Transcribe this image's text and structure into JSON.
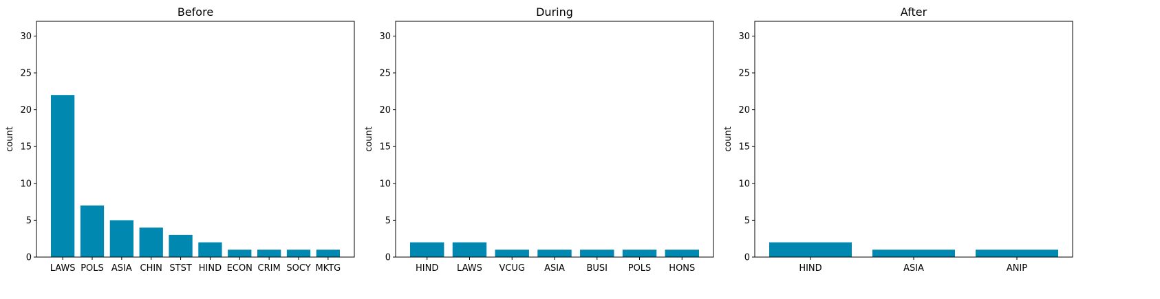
{
  "chart_data": [
    {
      "type": "bar",
      "title": "Before",
      "xlabel": "",
      "ylabel": "count",
      "categories": [
        "LAWS",
        "POLS",
        "ASIA",
        "CHIN",
        "STST",
        "HIND",
        "ECON",
        "CRIM",
        "SOCY",
        "MKTG"
      ],
      "values": [
        22,
        7,
        5,
        4,
        3,
        2,
        1,
        1,
        1,
        1
      ],
      "ylim": [
        0,
        32
      ],
      "yticks": [
        "0",
        "5",
        "10",
        "15",
        "20",
        "25",
        "30"
      ],
      "bar_color": "#0088b0",
      "grid": false
    },
    {
      "type": "bar",
      "title": "During",
      "xlabel": "",
      "ylabel": "count",
      "categories": [
        "HIND",
        "LAWS",
        "VCUG",
        "ASIA",
        "BUSI",
        "POLS",
        "HONS"
      ],
      "values": [
        2,
        2,
        1,
        1,
        1,
        1,
        1
      ],
      "ylim": [
        0,
        32
      ],
      "yticks": [
        "0",
        "5",
        "10",
        "15",
        "20",
        "25",
        "30"
      ],
      "bar_color": "#0088b0",
      "grid": false
    },
    {
      "type": "bar",
      "title": "After",
      "xlabel": "",
      "ylabel": "count",
      "categories": [
        "HIND",
        "ASIA",
        "ANIP"
      ],
      "values": [
        2,
        1,
        1
      ],
      "ylim": [
        0,
        32
      ],
      "yticks": [
        "0",
        "5",
        "10",
        "15",
        "20",
        "25",
        "30"
      ],
      "bar_color": "#0088b0",
      "grid": false
    }
  ]
}
